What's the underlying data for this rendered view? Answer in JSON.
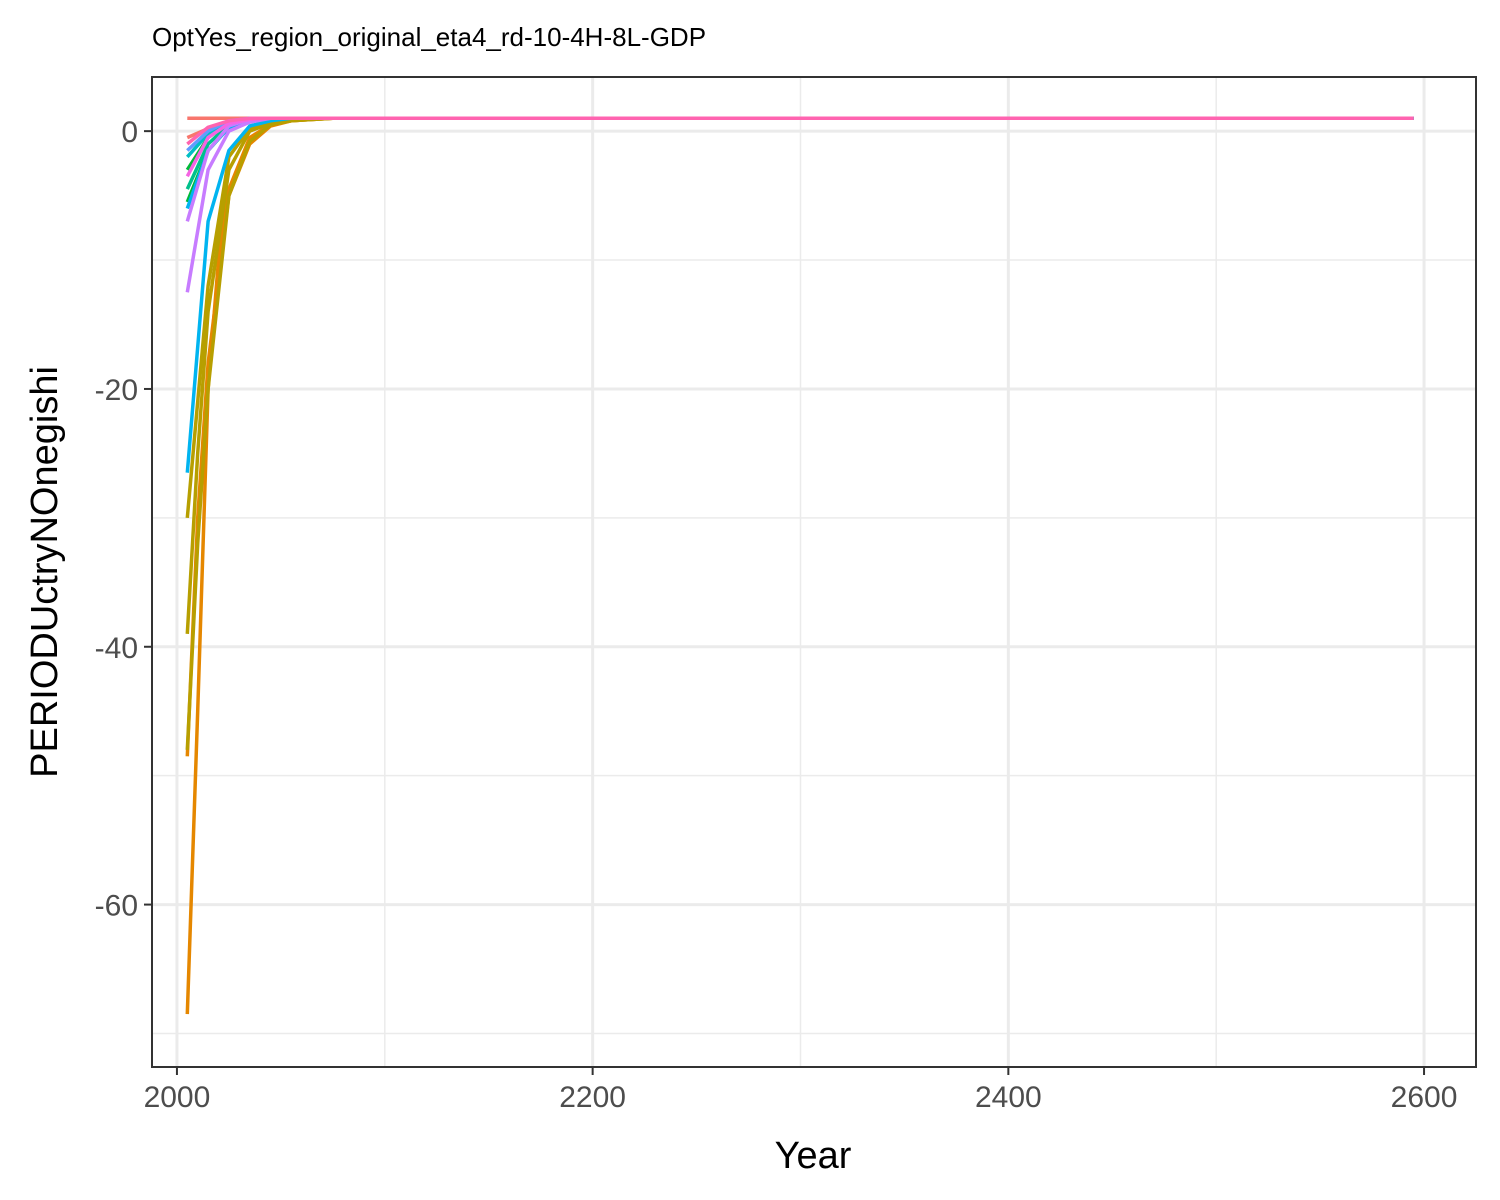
{
  "chart_data": {
    "type": "line",
    "title": "OptYes_region_original_eta4_rd-10-4H-8L-GDP",
    "xlabel": "Year",
    "ylabel": "PERIODUctryNOnegishi",
    "xlim": [
      1988,
      2625
    ],
    "ylim": [
      -72.6,
      4.2
    ],
    "x_ticks": [
      2000,
      2200,
      2400,
      2600
    ],
    "y_ticks": [
      0,
      -20,
      -40,
      -60
    ],
    "x_tick_labels": [
      "2000",
      "2200",
      "2400",
      "2600"
    ],
    "y_tick_labels": [
      "0",
      "-20",
      "-40",
      "-60"
    ],
    "grid": true,
    "legend": "none",
    "series": [
      {
        "color": "#F8766D",
        "x": [
          2005,
          2015,
          2025,
          2035,
          2045,
          2055,
          2065,
          2075,
          2085,
          2095,
          2595
        ],
        "y": [
          1,
          1,
          1,
          1,
          1,
          1,
          1,
          1,
          1,
          1,
          1
        ]
      },
      {
        "color": "#F8766D",
        "x": [
          2005,
          2015,
          2025,
          2035,
          2045,
          2055,
          2065,
          2075,
          2085,
          2095,
          2595
        ],
        "y": [
          -0.5,
          0.2,
          0.6,
          0.9,
          1,
          1,
          1,
          1,
          1,
          1,
          1
        ]
      },
      {
        "color": "#E58700",
        "x": [
          2005,
          2010,
          2015,
          2020,
          2025,
          2035,
          2045,
          2055,
          2065,
          2075,
          2085,
          2095,
          2595
        ],
        "y": [
          -68.5,
          -45,
          -20,
          -10,
          -4.5,
          -0.5,
          0.5,
          0.8,
          0.9,
          1,
          1,
          1,
          1
        ]
      },
      {
        "color": "#E58700",
        "x": [
          2005,
          2010,
          2015,
          2025,
          2035,
          2045,
          2055,
          2065,
          2075,
          2085,
          2095,
          2595
        ],
        "y": [
          -48.5,
          -30,
          -18,
          -5,
          -1,
          0.4,
          0.8,
          0.9,
          1,
          1,
          1,
          1
        ]
      },
      {
        "color": "#B79F00",
        "x": [
          2005,
          2010,
          2015,
          2025,
          2035,
          2045,
          2055,
          2065,
          2075,
          2085,
          2095,
          2595
        ],
        "y": [
          -39,
          -25,
          -14,
          -3,
          0,
          0.6,
          0.9,
          1,
          1,
          1,
          1,
          1
        ]
      },
      {
        "color": "#B79F00",
        "x": [
          2005,
          2010,
          2015,
          2025,
          2035,
          2045,
          2055,
          2065,
          2075,
          2085,
          2095,
          2595
        ],
        "y": [
          -48,
          -32,
          -20,
          -5,
          -0.8,
          0.5,
          0.8,
          0.9,
          1,
          1,
          1,
          1
        ]
      },
      {
        "color": "#B79F00",
        "x": [
          2005,
          2015,
          2025,
          2035,
          2045,
          2055,
          2065,
          2075,
          2085,
          2095,
          2595
        ],
        "y": [
          -30,
          -12,
          -2,
          0.2,
          0.7,
          0.9,
          1,
          1,
          1,
          1,
          1
        ]
      },
      {
        "color": "#00BA38",
        "x": [
          2005,
          2015,
          2025,
          2035,
          2045,
          2055,
          2065,
          2075,
          2085,
          2095,
          2595
        ],
        "y": [
          -5.5,
          -1.5,
          0.3,
          0.8,
          1,
          1,
          1,
          1,
          1,
          1,
          1
        ]
      },
      {
        "color": "#00BA38",
        "x": [
          2005,
          2015,
          2025,
          2035,
          2045,
          2055,
          2065,
          2075,
          2085,
          2095,
          2595
        ],
        "y": [
          -3,
          -0.5,
          0.6,
          0.9,
          1,
          1,
          1,
          1,
          1,
          1,
          1
        ]
      },
      {
        "color": "#00C08B",
        "x": [
          2005,
          2015,
          2025,
          2035,
          2045,
          2055,
          2065,
          2075,
          2085,
          2095,
          2595
        ],
        "y": [
          -4.5,
          -1,
          0.5,
          0.9,
          1,
          1,
          1,
          1,
          1,
          1,
          1
        ]
      },
      {
        "color": "#00BFC4",
        "x": [
          2005,
          2015,
          2025,
          2035,
          2045,
          2055,
          2065,
          2075,
          2085,
          2095,
          2595
        ],
        "y": [
          -2,
          -0.2,
          0.7,
          1,
          1,
          1,
          1,
          1,
          1,
          1,
          1
        ]
      },
      {
        "color": "#00B4F0",
        "x": [
          2005,
          2015,
          2025,
          2035,
          2045,
          2055,
          2065,
          2075,
          2085,
          2095,
          2595
        ],
        "y": [
          -26.5,
          -7,
          -1.5,
          0.4,
          0.8,
          1,
          1,
          1,
          1,
          1,
          1
        ]
      },
      {
        "color": "#00B4F0",
        "x": [
          2005,
          2015,
          2025,
          2035,
          2045,
          2055,
          2065,
          2075,
          2085,
          2095,
          2595
        ],
        "y": [
          -6,
          -1.5,
          0.3,
          0.8,
          1,
          1,
          1,
          1,
          1,
          1,
          1
        ]
      },
      {
        "color": "#619CFF",
        "x": [
          2005,
          2015,
          2025,
          2035,
          2045,
          2055,
          2065,
          2075,
          2085,
          2095,
          2595
        ],
        "y": [
          -1.5,
          0,
          0.8,
          1,
          1,
          1,
          1,
          1,
          1,
          1,
          1
        ]
      },
      {
        "color": "#C77CFF",
        "x": [
          2005,
          2015,
          2025,
          2035,
          2045,
          2055,
          2065,
          2075,
          2085,
          2095,
          2595
        ],
        "y": [
          -12.5,
          -3,
          0,
          0.7,
          1,
          1,
          1,
          1,
          1,
          1,
          1
        ]
      },
      {
        "color": "#C77CFF",
        "x": [
          2005,
          2015,
          2025,
          2035,
          2045,
          2055,
          2065,
          2075,
          2085,
          2095,
          2595
        ],
        "y": [
          -7,
          -1.5,
          0.4,
          0.9,
          1,
          1,
          1,
          1,
          1,
          1,
          1
        ]
      },
      {
        "color": "#F564E3",
        "x": [
          2005,
          2015,
          2025,
          2035,
          2045,
          2055,
          2065,
          2075,
          2085,
          2095,
          2595
        ],
        "y": [
          -3.5,
          -0.5,
          0.6,
          0.9,
          1,
          1,
          1,
          1,
          1,
          1,
          1
        ]
      },
      {
        "color": "#FF64B0",
        "x": [
          2005,
          2015,
          2025,
          2035,
          2045,
          2055,
          2065,
          2075,
          2085,
          2095,
          2595
        ],
        "y": [
          -1,
          0.3,
          0.8,
          1,
          1,
          1,
          1,
          1,
          1,
          1,
          1
        ]
      }
    ]
  }
}
